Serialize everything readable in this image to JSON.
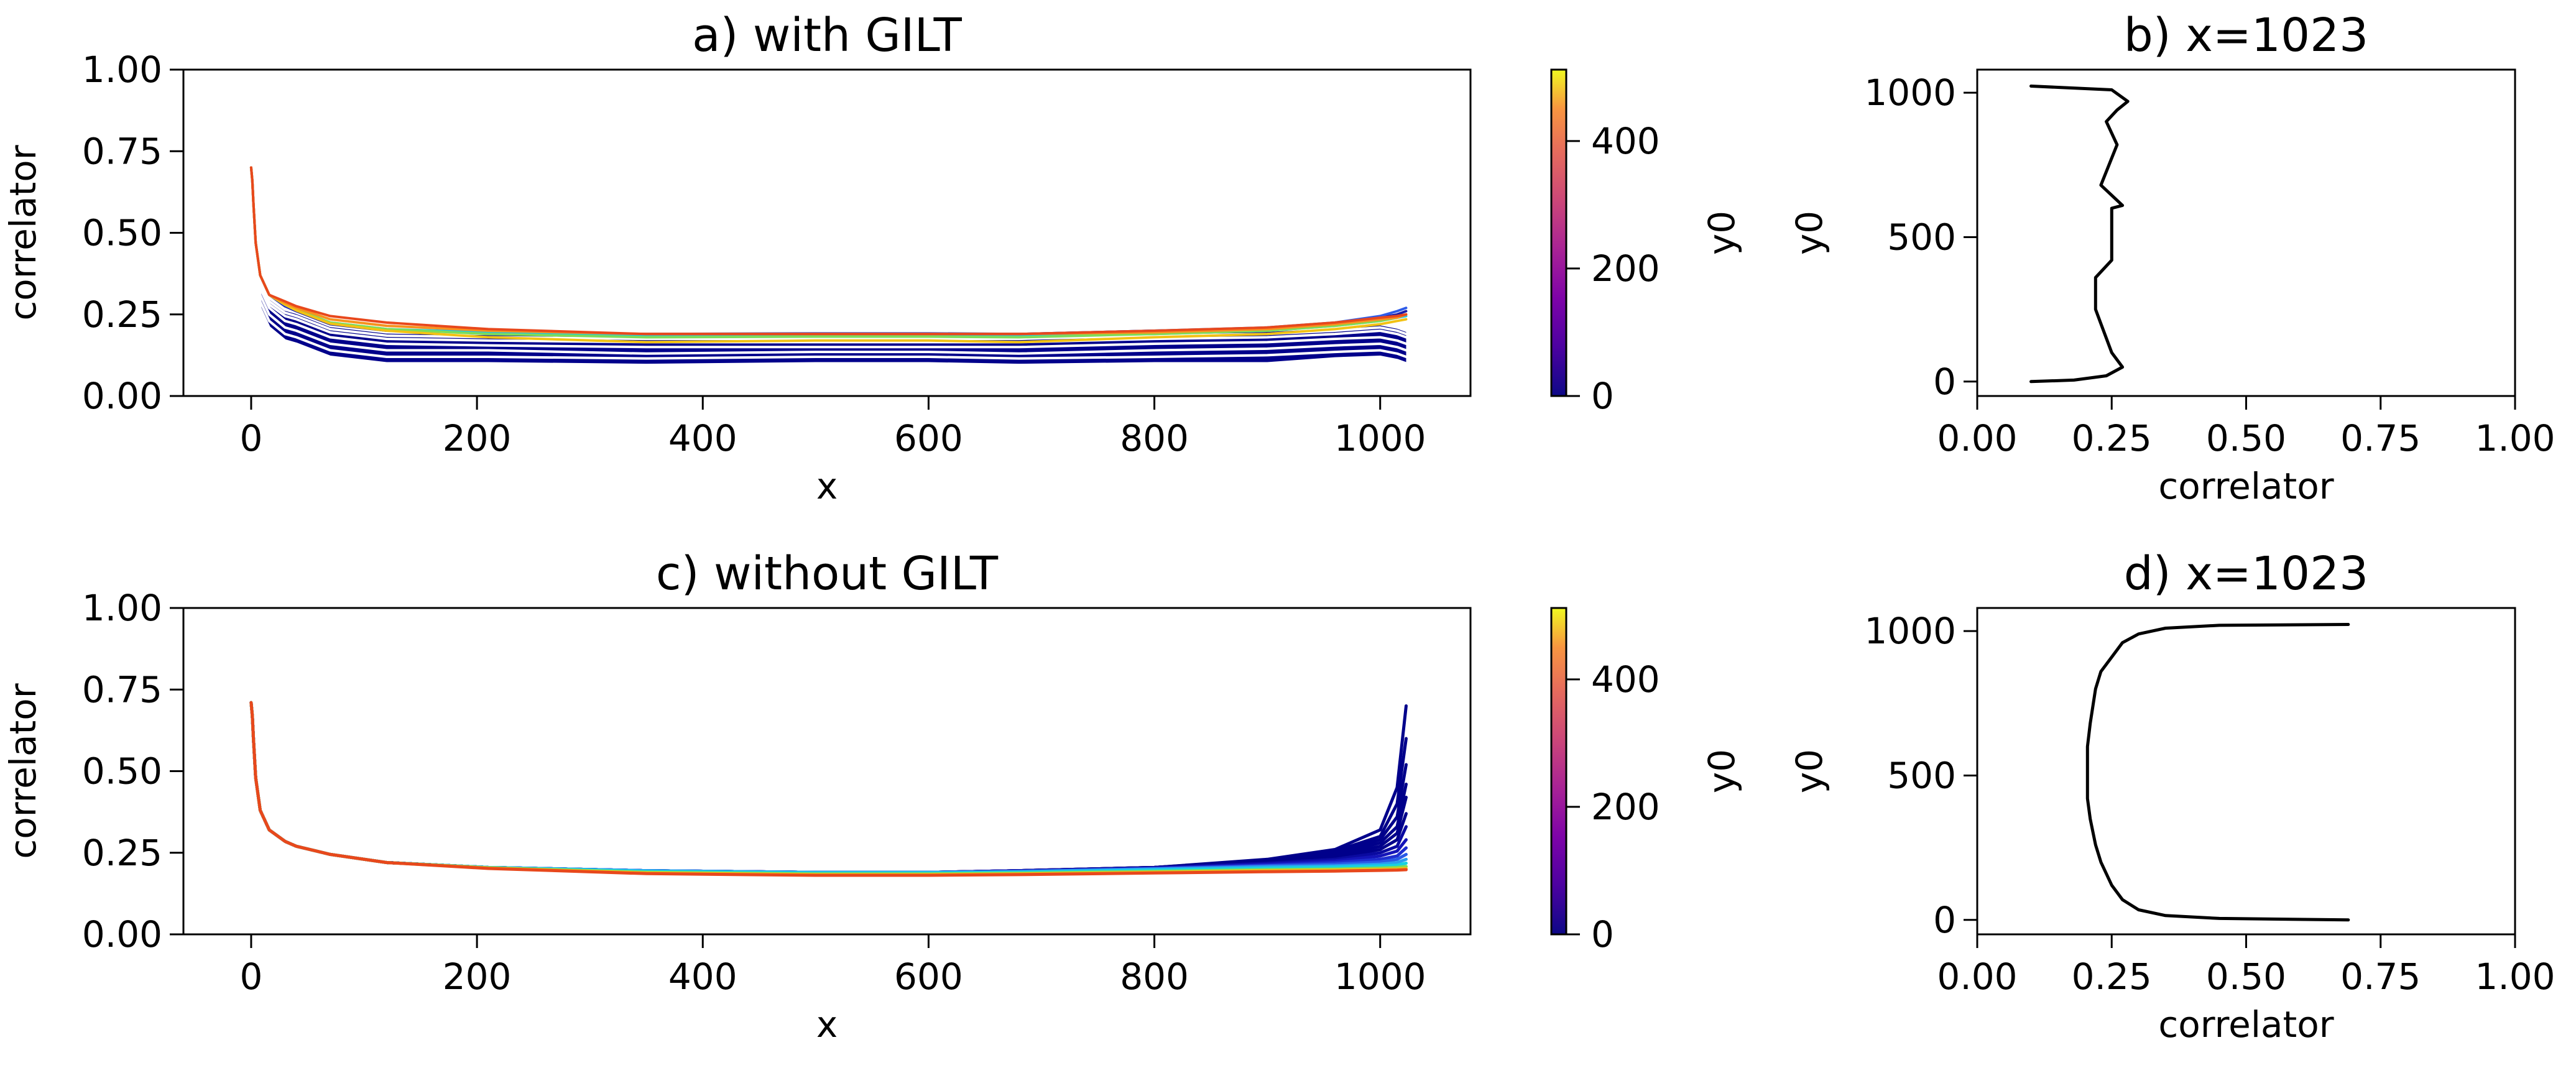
{
  "chart_data": [
    {
      "id": "a",
      "type": "line",
      "title": "a) with GILT",
      "xlabel": "x",
      "ylabel": "correlator",
      "xlim": [
        -60,
        1080
      ],
      "ylim": [
        0,
        1
      ],
      "xticks": [
        0,
        200,
        400,
        600,
        800,
        1000
      ],
      "yticks": [
        0,
        0.25,
        0.5,
        0.75,
        1.0
      ],
      "ytick_labels": [
        "0.00",
        "0.25",
        "0.50",
        "0.75",
        "1.00"
      ],
      "colorbar": {
        "label": "y0",
        "range": [
          0,
          512
        ],
        "ticks": [
          0,
          200,
          400
        ],
        "colormap": "plasma"
      },
      "x": [
        0,
        1,
        2,
        4,
        8,
        16,
        30,
        40,
        70,
        120,
        210,
        350,
        500,
        600,
        680,
        800,
        900,
        960,
        1000,
        1015,
        1023
      ],
      "series": [
        {
          "y0": 0,
          "color": "#ffffff",
          "values": [
            0.7,
            0.62,
            0.52,
            0.38,
            0.27,
            0.21,
            0.17,
            0.16,
            0.12,
            0.1,
            0.1,
            0.095,
            0.1,
            0.1,
            0.095,
            0.1,
            0.1,
            0.115,
            0.12,
            0.11,
            0.1
          ]
        },
        {
          "y0": 16,
          "color": "#ffffff",
          "values": [
            0.7,
            0.63,
            0.54,
            0.4,
            0.29,
            0.23,
            0.19,
            0.18,
            0.14,
            0.12,
            0.12,
            0.115,
            0.12,
            0.12,
            0.115,
            0.12,
            0.125,
            0.135,
            0.14,
            0.13,
            0.12
          ]
        },
        {
          "y0": 24,
          "color": "#ffffff",
          "values": [
            0.7,
            0.63,
            0.55,
            0.41,
            0.31,
            0.25,
            0.21,
            0.2,
            0.16,
            0.14,
            0.14,
            0.13,
            0.135,
            0.135,
            0.13,
            0.14,
            0.145,
            0.155,
            0.16,
            0.15,
            0.14
          ]
        },
        {
          "y0": 40,
          "color": "#ffffff",
          "values": [
            0.7,
            0.64,
            0.56,
            0.43,
            0.33,
            0.27,
            0.23,
            0.22,
            0.18,
            0.16,
            0.155,
            0.15,
            0.15,
            0.15,
            0.15,
            0.16,
            0.165,
            0.175,
            0.18,
            0.17,
            0.16
          ]
        },
        {
          "y0": 56,
          "color": "#ffffff",
          "values": [
            0.7,
            0.64,
            0.57,
            0.44,
            0.34,
            0.28,
            0.245,
            0.235,
            0.195,
            0.175,
            0.17,
            0.165,
            0.165,
            0.165,
            0.165,
            0.175,
            0.18,
            0.19,
            0.2,
            0.19,
            0.18
          ]
        },
        {
          "y0": 80,
          "color": "#ffffff",
          "values": [
            0.7,
            0.65,
            0.58,
            0.45,
            0.35,
            0.29,
            0.255,
            0.245,
            0.205,
            0.185,
            0.18,
            0.175,
            0.175,
            0.175,
            0.175,
            0.185,
            0.19,
            0.2,
            0.21,
            0.2,
            0.19
          ]
        },
        {
          "y0": 112,
          "color": "#ffffff",
          "values": [
            0.7,
            0.65,
            0.58,
            0.46,
            0.36,
            0.3,
            0.265,
            0.255,
            0.215,
            0.195,
            0.19,
            0.185,
            0.185,
            0.185,
            0.185,
            0.195,
            0.2,
            0.21,
            0.22,
            0.21,
            0.2
          ]
        },
        {
          "y0": 160,
          "color": "#1c1ca8",
          "values": [
            0.7,
            0.66,
            0.59,
            0.47,
            0.37,
            0.31,
            0.275,
            0.26,
            0.22,
            0.2,
            0.195,
            0.19,
            0.19,
            0.19,
            0.19,
            0.2,
            0.205,
            0.22,
            0.24,
            0.25,
            0.26
          ]
        },
        {
          "y0": 200,
          "color": "#2e5be8",
          "values": [
            0.7,
            0.66,
            0.59,
            0.47,
            0.37,
            0.31,
            0.278,
            0.262,
            0.222,
            0.202,
            0.197,
            0.19,
            0.192,
            0.192,
            0.19,
            0.2,
            0.21,
            0.225,
            0.245,
            0.26,
            0.27
          ]
        },
        {
          "y0": 256,
          "color": "#18c6e8",
          "values": [
            0.7,
            0.66,
            0.59,
            0.47,
            0.37,
            0.31,
            0.28,
            0.265,
            0.225,
            0.205,
            0.195,
            0.185,
            0.188,
            0.188,
            0.185,
            0.19,
            0.2,
            0.215,
            0.23,
            0.24,
            0.245
          ]
        },
        {
          "y0": 320,
          "color": "#7ddc5a",
          "values": [
            0.7,
            0.66,
            0.59,
            0.47,
            0.37,
            0.31,
            0.28,
            0.265,
            0.225,
            0.205,
            0.19,
            0.18,
            0.182,
            0.182,
            0.18,
            0.19,
            0.2,
            0.215,
            0.23,
            0.24,
            0.25
          ]
        },
        {
          "y0": 384,
          "color": "#f2c214",
          "values": [
            0.7,
            0.66,
            0.59,
            0.47,
            0.37,
            0.31,
            0.28,
            0.262,
            0.222,
            0.2,
            0.18,
            0.165,
            0.17,
            0.17,
            0.165,
            0.18,
            0.19,
            0.205,
            0.22,
            0.23,
            0.235
          ]
        },
        {
          "y0": 448,
          "color": "#f7921e",
          "values": [
            0.7,
            0.66,
            0.59,
            0.47,
            0.37,
            0.31,
            0.285,
            0.27,
            0.235,
            0.215,
            0.2,
            0.19,
            0.19,
            0.19,
            0.19,
            0.195,
            0.205,
            0.22,
            0.235,
            0.24,
            0.25
          ]
        },
        {
          "y0": 512,
          "color": "#e8481c",
          "values": [
            0.7,
            0.66,
            0.59,
            0.47,
            0.37,
            0.31,
            0.29,
            0.275,
            0.245,
            0.225,
            0.205,
            0.19,
            0.19,
            0.19,
            0.19,
            0.2,
            0.21,
            0.225,
            0.24,
            0.245,
            0.25
          ]
        }
      ],
      "fill_band": {
        "color": "#00008b",
        "lower_series": 0,
        "upper_series": 6
      }
    },
    {
      "id": "b",
      "type": "line",
      "title": "b) x=1023",
      "xlabel": "correlator",
      "ylabel": "y0",
      "xlim": [
        0,
        1
      ],
      "ylim": [
        -50,
        1080
      ],
      "xticks": [
        0,
        0.25,
        0.5,
        0.75,
        1.0
      ],
      "xtick_labels": [
        "0.00",
        "0.25",
        "0.50",
        "0.75",
        "1.00"
      ],
      "yticks": [
        0,
        500,
        1000
      ],
      "series": [
        {
          "color": "#000000",
          "x": [
            0.1,
            0.18,
            0.24,
            0.27,
            0.25,
            0.23,
            0.22,
            0.22,
            0.25,
            0.25,
            0.27,
            0.23,
            0.26,
            0.24,
            0.26,
            0.28,
            0.25,
            0.1
          ],
          "y": [
            0,
            5,
            20,
            50,
            100,
            200,
            250,
            360,
            420,
            600,
            610,
            680,
            820,
            900,
            940,
            970,
            1010,
            1023
          ]
        }
      ]
    },
    {
      "id": "c",
      "type": "line",
      "title": "c) without GILT",
      "xlabel": "x",
      "ylabel": "correlator",
      "xlim": [
        -60,
        1080
      ],
      "ylim": [
        0,
        1
      ],
      "xticks": [
        0,
        200,
        400,
        600,
        800,
        1000
      ],
      "yticks": [
        0,
        0.25,
        0.5,
        0.75,
        1.0
      ],
      "ytick_labels": [
        "0.00",
        "0.25",
        "0.50",
        "0.75",
        "1.00"
      ],
      "colorbar": {
        "label": "y0",
        "range": [
          0,
          512
        ],
        "ticks": [
          0,
          200,
          400
        ],
        "colormap": "plasma"
      },
      "x": [
        0,
        1,
        2,
        4,
        8,
        16,
        30,
        40,
        70,
        120,
        210,
        350,
        500,
        600,
        680,
        800,
        900,
        960,
        1000,
        1015,
        1023
      ],
      "series": [
        {
          "y0": 0,
          "color": "#00008b",
          "values": [
            0.71,
            0.67,
            0.6,
            0.48,
            0.38,
            0.32,
            0.285,
            0.27,
            0.245,
            0.22,
            0.205,
            0.195,
            0.19,
            0.19,
            0.195,
            0.205,
            0.23,
            0.26,
            0.32,
            0.45,
            0.7
          ]
        },
        {
          "y0": 4,
          "color": "#00008b",
          "values": [
            0.71,
            0.67,
            0.6,
            0.48,
            0.38,
            0.32,
            0.285,
            0.27,
            0.245,
            0.22,
            0.205,
            0.195,
            0.19,
            0.19,
            0.195,
            0.205,
            0.228,
            0.255,
            0.3,
            0.4,
            0.6
          ]
        },
        {
          "y0": 8,
          "color": "#00008b",
          "values": [
            0.71,
            0.67,
            0.6,
            0.48,
            0.38,
            0.32,
            0.285,
            0.27,
            0.245,
            0.22,
            0.205,
            0.195,
            0.19,
            0.19,
            0.195,
            0.205,
            0.226,
            0.25,
            0.29,
            0.36,
            0.52
          ]
        },
        {
          "y0": 16,
          "color": "#00008b",
          "values": [
            0.71,
            0.67,
            0.6,
            0.48,
            0.38,
            0.32,
            0.285,
            0.27,
            0.245,
            0.22,
            0.205,
            0.195,
            0.19,
            0.19,
            0.195,
            0.205,
            0.224,
            0.245,
            0.28,
            0.33,
            0.46
          ]
        },
        {
          "y0": 24,
          "color": "#00008b",
          "values": [
            0.71,
            0.67,
            0.6,
            0.48,
            0.38,
            0.32,
            0.285,
            0.27,
            0.245,
            0.22,
            0.205,
            0.195,
            0.19,
            0.19,
            0.195,
            0.205,
            0.222,
            0.24,
            0.27,
            0.31,
            0.42
          ]
        },
        {
          "y0": 40,
          "color": "#00008b",
          "values": [
            0.71,
            0.67,
            0.6,
            0.48,
            0.38,
            0.32,
            0.285,
            0.27,
            0.245,
            0.22,
            0.205,
            0.195,
            0.19,
            0.19,
            0.195,
            0.204,
            0.22,
            0.235,
            0.26,
            0.29,
            0.37
          ]
        },
        {
          "y0": 64,
          "color": "#0a0aa0",
          "values": [
            0.71,
            0.67,
            0.6,
            0.48,
            0.38,
            0.32,
            0.285,
            0.27,
            0.245,
            0.22,
            0.205,
            0.195,
            0.19,
            0.19,
            0.195,
            0.204,
            0.218,
            0.23,
            0.25,
            0.27,
            0.33
          ]
        },
        {
          "y0": 96,
          "color": "#1414b8",
          "values": [
            0.71,
            0.67,
            0.6,
            0.48,
            0.38,
            0.32,
            0.285,
            0.27,
            0.245,
            0.22,
            0.205,
            0.195,
            0.19,
            0.19,
            0.194,
            0.203,
            0.215,
            0.225,
            0.24,
            0.255,
            0.29
          ]
        },
        {
          "y0": 128,
          "color": "#1e2ed0",
          "values": [
            0.71,
            0.67,
            0.6,
            0.48,
            0.38,
            0.32,
            0.285,
            0.27,
            0.245,
            0.22,
            0.205,
            0.195,
            0.19,
            0.19,
            0.194,
            0.202,
            0.212,
            0.22,
            0.23,
            0.24,
            0.265
          ]
        },
        {
          "y0": 176,
          "color": "#2a5ae6",
          "values": [
            0.71,
            0.67,
            0.6,
            0.48,
            0.38,
            0.32,
            0.285,
            0.27,
            0.245,
            0.22,
            0.205,
            0.195,
            0.19,
            0.19,
            0.193,
            0.201,
            0.21,
            0.215,
            0.222,
            0.23,
            0.245
          ]
        },
        {
          "y0": 224,
          "color": "#2a9ef0",
          "values": [
            0.71,
            0.67,
            0.6,
            0.48,
            0.38,
            0.32,
            0.285,
            0.27,
            0.245,
            0.22,
            0.205,
            0.195,
            0.19,
            0.19,
            0.192,
            0.2,
            0.207,
            0.21,
            0.215,
            0.22,
            0.23
          ]
        },
        {
          "y0": 288,
          "color": "#18d2e0",
          "values": [
            0.71,
            0.67,
            0.6,
            0.48,
            0.38,
            0.32,
            0.285,
            0.27,
            0.245,
            0.22,
            0.205,
            0.193,
            0.188,
            0.188,
            0.19,
            0.197,
            0.203,
            0.206,
            0.21,
            0.212,
            0.218
          ]
        },
        {
          "y0": 352,
          "color": "#7ddc5a",
          "values": [
            0.71,
            0.67,
            0.6,
            0.48,
            0.38,
            0.32,
            0.285,
            0.27,
            0.245,
            0.22,
            0.204,
            0.19,
            0.185,
            0.185,
            0.187,
            0.193,
            0.198,
            0.2,
            0.203,
            0.205,
            0.208
          ]
        },
        {
          "y0": 416,
          "color": "#f2c214",
          "values": [
            0.71,
            0.67,
            0.6,
            0.48,
            0.38,
            0.32,
            0.285,
            0.27,
            0.245,
            0.22,
            0.203,
            0.188,
            0.183,
            0.183,
            0.185,
            0.19,
            0.195,
            0.197,
            0.199,
            0.2,
            0.202
          ]
        },
        {
          "y0": 512,
          "color": "#e8481c",
          "values": [
            0.71,
            0.67,
            0.6,
            0.48,
            0.38,
            0.32,
            0.285,
            0.27,
            0.245,
            0.22,
            0.202,
            0.186,
            0.181,
            0.181,
            0.183,
            0.188,
            0.192,
            0.194,
            0.196,
            0.197,
            0.198
          ]
        }
      ]
    },
    {
      "id": "d",
      "type": "line",
      "title": "d) x=1023",
      "xlabel": "correlator",
      "ylabel": "y0",
      "xlim": [
        0,
        1
      ],
      "ylim": [
        -50,
        1080
      ],
      "xticks": [
        0,
        0.25,
        0.5,
        0.75,
        1.0
      ],
      "xtick_labels": [
        "0.00",
        "0.25",
        "0.50",
        "0.75",
        "1.00"
      ],
      "yticks": [
        0,
        500,
        1000
      ],
      "series": [
        {
          "color": "#000000",
          "x": [
            0.69,
            0.45,
            0.35,
            0.3,
            0.27,
            0.25,
            0.23,
            0.22,
            0.21,
            0.205,
            0.205,
            0.21,
            0.22,
            0.23,
            0.25,
            0.27,
            0.3,
            0.35,
            0.45,
            0.69
          ],
          "y": [
            0,
            5,
            15,
            35,
            70,
            120,
            200,
            260,
            350,
            420,
            600,
            680,
            800,
            860,
            910,
            960,
            990,
            1010,
            1020,
            1023
          ]
        }
      ]
    }
  ]
}
